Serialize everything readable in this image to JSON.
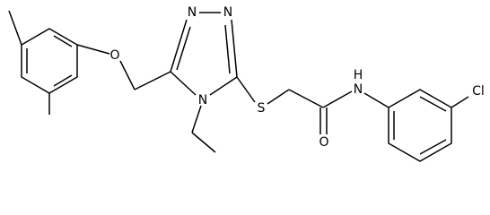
{
  "atoms": {
    "ether_oxygen": "O",
    "triazole_n1": "N",
    "triazole_n2": "N",
    "triazole_n4": "N",
    "sulfur": "S",
    "carbonyl_oxygen": "O",
    "amide_nitrogen": "N",
    "amide_hydrogen": "H",
    "chlorine": "Cl"
  }
}
